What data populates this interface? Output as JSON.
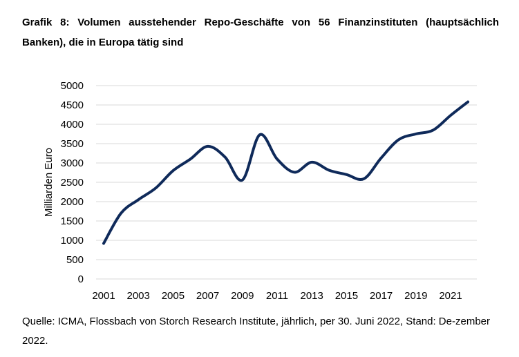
{
  "title": "Grafik 8: Volumen ausstehender Repo-Geschäfte von 56 Finanzinstituten (hauptsächlich Banken), die in Europa tätig sind",
  "source": "Quelle: ICMA, Flossbach von Storch Research Institute, jährlich, per 30. Juni 2022, Stand: De-zember 2022.",
  "chart_data": {
    "type": "line",
    "ylabel": "Milliarden Euro",
    "xlabel": "",
    "ylim": [
      0,
      5000
    ],
    "yticks": [
      0,
      500,
      1000,
      1500,
      2000,
      2500,
      3000,
      3500,
      4000,
      4500,
      5000
    ],
    "xtick_labels": [
      "2001",
      "2003",
      "2005",
      "2007",
      "2009",
      "2011",
      "2013",
      "2015",
      "2017",
      "2019",
      "2021"
    ],
    "grid": "horizontal",
    "line_color": "#0f2a5a",
    "series": [
      {
        "x": [
          2001,
          2002,
          2003,
          2004,
          2005,
          2006,
          2007,
          2008,
          2009,
          2010,
          2011,
          2012,
          2013,
          2014,
          2015,
          2016,
          2017,
          2018,
          2019,
          2020,
          2021,
          2022
        ],
        "values": [
          920,
          1700,
          2050,
          2350,
          2800,
          3100,
          3430,
          3150,
          2560,
          3730,
          3100,
          2760,
          3020,
          2810,
          2700,
          2590,
          3130,
          3600,
          3750,
          3850,
          4230,
          4580
        ]
      }
    ]
  }
}
